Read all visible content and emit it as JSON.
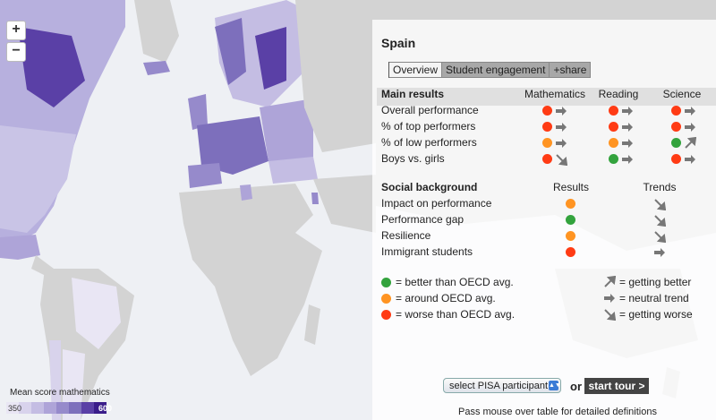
{
  "map": {
    "colors": {
      "ocean": "#eef0f4",
      "no_data": "#d3d3d3",
      "scale": [
        "#e9e6f4",
        "#d8d3ec",
        "#c4bde3",
        "#aea4d8",
        "#968acb",
        "#7d6fbc",
        "#5a40a6",
        "#3a1d8a"
      ]
    },
    "zoom_in": "+",
    "zoom_out": "−"
  },
  "panel": {
    "country": "Spain",
    "tabs": [
      "Overview",
      "Student engagement",
      "+share"
    ],
    "main_results": {
      "heading": "Main results",
      "columns": [
        "Mathematics",
        "Reading",
        "Science"
      ],
      "rows": [
        {
          "label": "Overall performance",
          "cells": [
            [
              "red",
              "neutral"
            ],
            [
              "red",
              "neutral"
            ],
            [
              "red",
              "neutral"
            ]
          ]
        },
        {
          "label": "% of top performers",
          "cells": [
            [
              "red",
              "neutral"
            ],
            [
              "red",
              "neutral"
            ],
            [
              "red",
              "neutral"
            ]
          ]
        },
        {
          "label": "% of low performers",
          "cells": [
            [
              "orange",
              "neutral"
            ],
            [
              "orange",
              "neutral"
            ],
            [
              "green",
              "better"
            ]
          ]
        },
        {
          "label": "Boys vs. girls",
          "cells": [
            [
              "red",
              "worse"
            ],
            [
              "green",
              "neutral"
            ],
            [
              "red",
              "neutral"
            ]
          ]
        }
      ]
    },
    "social": {
      "heading": "Social background",
      "columns": [
        "Results",
        "Trends"
      ],
      "rows": [
        {
          "label": "Impact on performance",
          "dot": "orange",
          "trend": "worse"
        },
        {
          "label": "Performance gap",
          "dot": "green",
          "trend": "worse"
        },
        {
          "label": "Resilience",
          "dot": "orange",
          "trend": "worse"
        },
        {
          "label": "Immigrant students",
          "dot": "red",
          "trend": "neutral"
        }
      ]
    },
    "legend": {
      "better": "= better than OECD avg.",
      "around": "= around OECD avg.",
      "worse": "= worse than OECD avg.",
      "getting_better": "= getting better",
      "neutral": "= neutral trend",
      "getting_worse": "= getting worse"
    },
    "select_label": "select PISA participant",
    "or": "or",
    "tour": "start tour >",
    "hint": "Pass mouse over table for detailed definitions"
  },
  "scale": {
    "title": "Mean score mathematics",
    "min": "350",
    "max": "600"
  }
}
